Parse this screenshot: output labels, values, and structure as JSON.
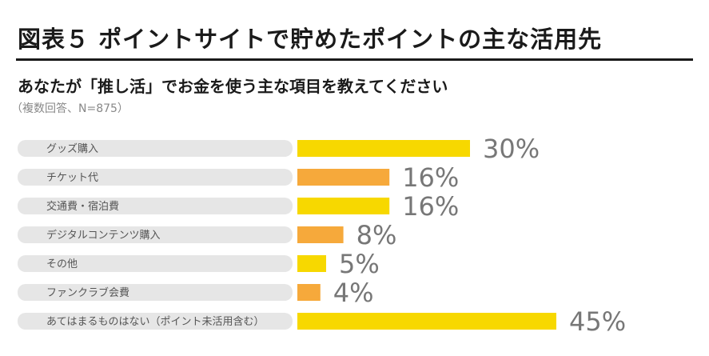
{
  "title": "図表５ ポイントサイトで貯めたポイントの主な活用先",
  "subtitle": "あなたが「推し活」でお金を使う主な項目を教えてください",
  "note": "（複数回答、N=875）",
  "colors": {
    "yellow": "#F7D800",
    "orange": "#F6A93B",
    "label_bg": "#E6E6E6",
    "value_text": "#777777"
  },
  "chart_data": {
    "type": "bar",
    "orientation": "horizontal",
    "title": "図表５ ポイントサイトで貯めたポイントの主な活用先",
    "subtitle": "あなたが「推し活」でお金を使う主な項目を教えてください",
    "note": "（複数回答、N=875）",
    "unit": "%",
    "xlim": [
      0,
      100
    ],
    "grid": false,
    "categories": [
      "グッズ購入",
      "チケット代",
      "交通費・宿泊費",
      "デジタルコンテンツ購入",
      "その他",
      "ファンクラブ会費",
      "あてはまるものはない（ポイント未活用含む）"
    ],
    "values": [
      30,
      16,
      16,
      8,
      5,
      4,
      45
    ],
    "value_labels": [
      "30%",
      "16%",
      "16%",
      "8%",
      "5%",
      "4%",
      "45%"
    ],
    "bar_colors": [
      "yellow",
      "orange",
      "yellow",
      "orange",
      "yellow",
      "orange",
      "yellow"
    ]
  }
}
